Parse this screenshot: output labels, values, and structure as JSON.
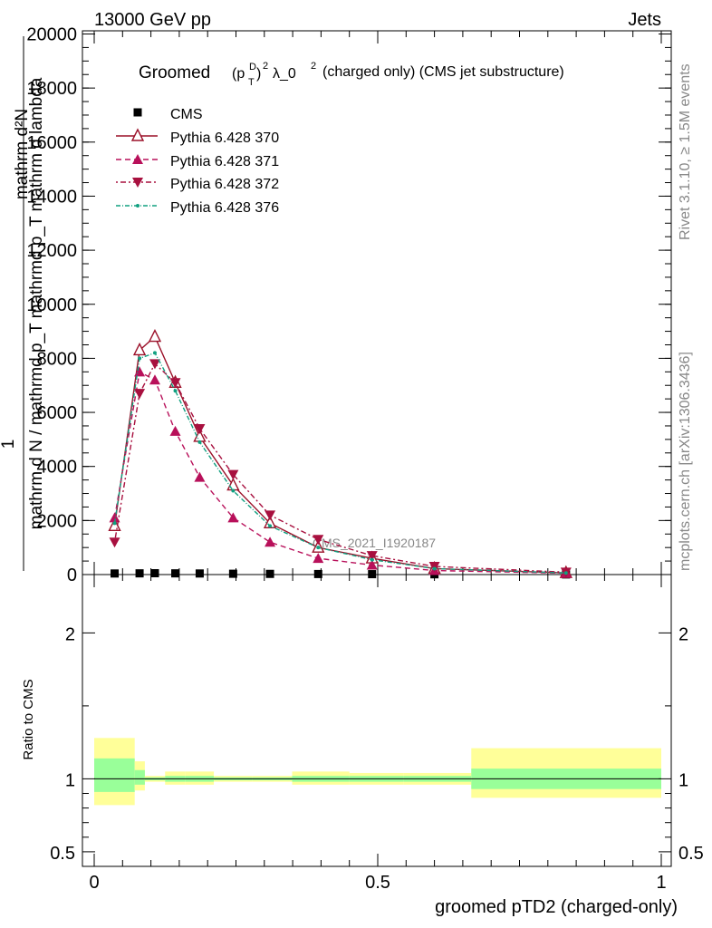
{
  "header": {
    "left": "13000 GeV pp",
    "right": "Jets"
  },
  "side": {
    "rivet": "Rivet 3.1.10, ≥ 1.5M events",
    "mcplots": "mcplots.cern.ch [arXiv:1306.3436]"
  },
  "watermark": "CMS_2021_I1920187",
  "title": {
    "lead": "Groomed",
    "paren_open": "(p",
    "sup_D": "D",
    "sub_T": "T",
    "paren_close": ")",
    "sup_2": "2",
    "lambda": "λ_0",
    "sup_2b": "2",
    "tail": "(charged only) (CMS jet substructure)"
  },
  "ylabel": {
    "one": "1",
    "den": "mathrm d N / mathrmd p_T mathrmd p_T mathrm d lambda",
    "num": "mathrm d²N"
  },
  "ratio_ylabel": "Ratio to CMS",
  "xlabel": "groomed pTD2 (charged-only)",
  "legend": [
    {
      "label": "CMS"
    },
    {
      "label": "Pythia 6.428 370"
    },
    {
      "label": "Pythia 6.428 371"
    },
    {
      "label": "Pythia 6.428 372"
    },
    {
      "label": "Pythia 6.428 376"
    }
  ],
  "colors": {
    "cms": "#000000",
    "p370": "#9b1029",
    "p371": "#b8105a",
    "p372": "#a8103f",
    "p376": "#10a080",
    "band_inner": "#99ff99",
    "band_outer": "#ffff99"
  },
  "chart_data": {
    "type": "line",
    "x_range": [
      0,
      1
    ],
    "y_range": [
      0,
      20000
    ],
    "ratio_range": [
      0.4,
      2.4
    ],
    "x_ticks": [
      {
        "v": 0,
        "label": "0"
      },
      {
        "v": 0.5,
        "label": "0.5"
      },
      {
        "v": 1,
        "label": "1"
      }
    ],
    "y_ticks": [
      {
        "v": 0,
        "label": "0"
      },
      {
        "v": 2000,
        "label": "2000"
      },
      {
        "v": 4000,
        "label": "4000"
      },
      {
        "v": 6000,
        "label": "6000"
      },
      {
        "v": 8000,
        "label": "8000"
      },
      {
        "v": 10000,
        "label": "10000"
      },
      {
        "v": 12000,
        "label": "12000"
      },
      {
        "v": 14000,
        "label": "14000"
      },
      {
        "v": 16000,
        "label": "16000"
      },
      {
        "v": 18000,
        "label": "18000"
      },
      {
        "v": 20000,
        "label": "20000"
      }
    ],
    "ratio_ticks": [
      {
        "v": 0.5,
        "label": "0.5"
      },
      {
        "v": 1,
        "label": "1"
      },
      {
        "v": 2,
        "label": "2"
      }
    ],
    "bins": [
      [
        0.0,
        0.0714
      ],
      [
        0.0714,
        0.0893
      ],
      [
        0.0893,
        0.125
      ],
      [
        0.125,
        0.161
      ],
      [
        0.161,
        0.211
      ],
      [
        0.211,
        0.279
      ],
      [
        0.279,
        0.349
      ],
      [
        0.349,
        0.45
      ],
      [
        0.45,
        0.545
      ],
      [
        0.545,
        0.665
      ],
      [
        0.665,
        1.0
      ]
    ],
    "series": [
      {
        "name": "CMS",
        "key": "cms",
        "marker": "square",
        "x": [
          0.036,
          0.08,
          0.107,
          0.143,
          0.186,
          0.245,
          0.31,
          0.395,
          0.49,
          0.6,
          0.832
        ],
        "y": [
          40,
          45,
          50,
          45,
          40,
          30,
          25,
          20,
          15,
          10,
          5
        ]
      },
      {
        "name": "Pythia 6.428 370",
        "key": "p370",
        "marker": "triangle-up-open",
        "dash": "",
        "x": [
          0.036,
          0.08,
          0.107,
          0.143,
          0.186,
          0.245,
          0.31,
          0.395,
          0.49,
          0.6,
          0.832
        ],
        "y": [
          1800,
          8300,
          8800,
          7100,
          5100,
          3300,
          1900,
          1000,
          600,
          220,
          60
        ]
      },
      {
        "name": "Pythia 6.428 371",
        "key": "p371",
        "marker": "triangle-up",
        "dash": "6,4",
        "x": [
          0.036,
          0.08,
          0.107,
          0.143,
          0.186,
          0.245,
          0.31,
          0.395,
          0.49,
          0.6,
          0.832
        ],
        "y": [
          2100,
          7500,
          7200,
          5300,
          3600,
          2100,
          1200,
          600,
          350,
          150,
          50
        ]
      },
      {
        "name": "Pythia 6.428 372",
        "key": "p372",
        "marker": "triangle-down",
        "dash": "2,3,6,3",
        "x": [
          0.036,
          0.08,
          0.107,
          0.143,
          0.186,
          0.245,
          0.31,
          0.395,
          0.49,
          0.6,
          0.832
        ],
        "y": [
          1200,
          6700,
          7800,
          7100,
          5400,
          3700,
          2200,
          1300,
          700,
          300,
          90
        ]
      },
      {
        "name": "Pythia 6.428 376",
        "key": "p376",
        "marker": "dot",
        "dash": "5,2,1,2",
        "x": [
          0.036,
          0.08,
          0.107,
          0.143,
          0.186,
          0.245,
          0.31,
          0.395,
          0.49,
          0.6,
          0.832
        ],
        "y": [
          1900,
          8000,
          8200,
          6800,
          4900,
          3100,
          1800,
          1000,
          550,
          220,
          60
        ]
      }
    ],
    "ratio_band": {
      "inner": [
        [
          0.91,
          1.14
        ],
        [
          0.96,
          1.06
        ],
        [
          0.99,
          1.01
        ],
        [
          0.98,
          1.02
        ],
        [
          0.98,
          1.02
        ],
        [
          0.99,
          1.01
        ],
        [
          0.99,
          1.01
        ],
        [
          0.98,
          1.02
        ],
        [
          0.98,
          1.02
        ],
        [
          0.98,
          1.02
        ],
        [
          0.93,
          1.07
        ]
      ],
      "outer": [
        [
          0.82,
          1.28
        ],
        [
          0.92,
          1.12
        ],
        [
          0.98,
          1.02
        ],
        [
          0.96,
          1.05
        ],
        [
          0.96,
          1.05
        ],
        [
          0.98,
          1.02
        ],
        [
          0.98,
          1.02
        ],
        [
          0.96,
          1.05
        ],
        [
          0.96,
          1.04
        ],
        [
          0.96,
          1.04
        ],
        [
          0.87,
          1.21
        ]
      ]
    }
  }
}
